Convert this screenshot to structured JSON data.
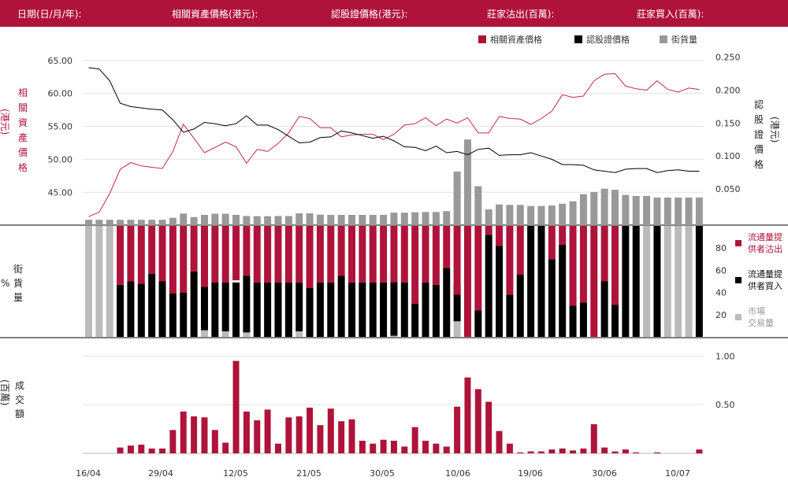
{
  "header": {
    "date_label": "日期(日/月/年):",
    "underlying_label": "相關資產價格(港元):",
    "warrant_label": "認股證價格(港元):",
    "mm_sell_label": "莊家沽出(百萬):",
    "mm_buy_label": "莊家買入(百萬):"
  },
  "legend": {
    "underlying": "相關資產價格",
    "warrant": "認股證價格",
    "outstanding": "街貨量"
  },
  "axes": {
    "left_top_label": [
      "相",
      "關",
      "資",
      "產",
      "價",
      "格"
    ],
    "left_top_unit": "(港元)",
    "right_top_label": [
      "認",
      "股",
      "證",
      "價",
      "格"
    ],
    "right_top_unit": "(港元)",
    "mid_left_label": [
      "街",
      "貨",
      "量"
    ],
    "mid_left_unit": "%",
    "bottom_left_label": [
      "成",
      "交",
      "額"
    ],
    "bottom_left_unit": "(百萬)"
  },
  "mid_legend": {
    "sell_line1": "流通量提",
    "sell_line2": "供者沽出",
    "buy_line1": "流通量提",
    "buy_line2": "供者買入",
    "market_line1": "市場",
    "market_line2": "交易量"
  },
  "colors": {
    "brand": "#b0133a",
    "underlying": "#b0133a",
    "warrant": "#000000",
    "outstanding": "#999999",
    "market": "#bbbbbb"
  },
  "chart_data": {
    "type": "line",
    "x_ticks": [
      "16/04",
      "29/04",
      "12/05",
      "21/05",
      "30/05",
      "10/06",
      "19/06",
      "30/06",
      "10/07"
    ],
    "underlying_price": {
      "name": "相關資產價格",
      "ylim": [
        40.5,
        67
      ],
      "ticks": [
        "65.00",
        "60.00",
        "55.00",
        "50.00",
        "45.00"
      ],
      "tick_values": [
        65,
        60,
        55,
        50,
        45
      ],
      "values": [
        41.3,
        42,
        44.8,
        48.5,
        49.5,
        49,
        48.8,
        48.6,
        51.2,
        55.3,
        53.2,
        51,
        51.8,
        52.6,
        51.9,
        49.4,
        51.5,
        51.2,
        52.4,
        54,
        56.5,
        56.2,
        54.8,
        54.8,
        53.4,
        53.7,
        53.8,
        53.8,
        53,
        53.8,
        55.2,
        55.4,
        56.3,
        55.1,
        56.1,
        55.5,
        56.3,
        54,
        54,
        56.5,
        56.2,
        56.1,
        55.3,
        56.2,
        57.3,
        59.8,
        59.4,
        59.6,
        61.9,
        62.9,
        63,
        61.1,
        60.7,
        60.5,
        61.9,
        60.6,
        60.2,
        60.8,
        60.6
      ]
    },
    "warrant_price": {
      "name": "認股證價格",
      "ylim": [
        0,
        0.265
      ],
      "ticks": [
        "0.250",
        "0.200",
        "0.150",
        "0.100",
        "0.050"
      ],
      "tick_values": [
        0.25,
        0.2,
        0.15,
        0.1,
        0.05
      ],
      "values": [
        0.234,
        0.232,
        0.214,
        0.18,
        0.175,
        0.173,
        0.171,
        0.17,
        0.155,
        0.136,
        0.141,
        0.151,
        0.149,
        0.146,
        0.149,
        0.161,
        0.147,
        0.147,
        0.14,
        0.13,
        0.12,
        0.121,
        0.128,
        0.129,
        0.138,
        0.135,
        0.131,
        0.127,
        0.13,
        0.123,
        0.114,
        0.113,
        0.108,
        0.115,
        0.105,
        0.107,
        0.102,
        0.11,
        0.112,
        0.101,
        0.102,
        0.102,
        0.105,
        0.1,
        0.095,
        0.087,
        0.087,
        0.086,
        0.079,
        0.077,
        0.075,
        0.08,
        0.081,
        0.081,
        0.075,
        0.078,
        0.079,
        0.077,
        0.077
      ]
    },
    "outstanding": {
      "name": "街貨量",
      "ylim": [
        0,
        80
      ],
      "values": [
        2.4,
        2.4,
        2.4,
        2.4,
        2.4,
        2.4,
        2.4,
        2.4,
        3.3,
        5.2,
        3.6,
        4.6,
        5.1,
        5.1,
        4.6,
        4.1,
        4.0,
        4.0,
        4.1,
        4.1,
        5.3,
        5.3,
        4.7,
        4.6,
        4.6,
        4.6,
        4.6,
        4.6,
        4.6,
        5.6,
        5.6,
        5.8,
        5.9,
        5.9,
        6.3,
        24.1,
        38.5,
        17.5,
        7.1,
        9.3,
        9.1,
        9.1,
        8.6,
        8.6,
        8.8,
        9.6,
        10.7,
        13.9,
        14.9,
        16.4,
        15.9,
        13.6,
        13.1,
        13.1,
        12.4,
        12.4,
        12.4,
        12.4,
        12.4
      ]
    },
    "liquidity": {
      "ylim": [
        0,
        100
      ],
      "ticks": [
        "80",
        "60",
        "40",
        "20"
      ],
      "tick_values": [
        80,
        60,
        40,
        20
      ],
      "series": [
        {
          "name": "流通量提供者沽出",
          "values": [
            0,
            0,
            0,
            53,
            50,
            52,
            43,
            50,
            61,
            60,
            41,
            55,
            51,
            51,
            49,
            45,
            51,
            51,
            51,
            51,
            51,
            56,
            51,
            51,
            45,
            51,
            51,
            51,
            51,
            51,
            51,
            70,
            51,
            53,
            38,
            62,
            100,
            76,
            8,
            18,
            62,
            44,
            0,
            0,
            30,
            17,
            72,
            69,
            100,
            50,
            71,
            0,
            0,
            0,
            0,
            0,
            0,
            0,
            0
          ]
        },
        {
          "name": "流通量提供者買入",
          "values": [
            0,
            0,
            0,
            47,
            50,
            48,
            57,
            50,
            39,
            40,
            59,
            39,
            49,
            44,
            49,
            51,
            49,
            49,
            49,
            49,
            44,
            44,
            49,
            49,
            55,
            49,
            49,
            49,
            49,
            49,
            49,
            30,
            49,
            47,
            62,
            33,
            0,
            24,
            92,
            82,
            38,
            56,
            100,
            100,
            70,
            83,
            28,
            31,
            0,
            50,
            29,
            100,
            100,
            0,
            100,
            0,
            0,
            0,
            100
          ]
        },
        {
          "name": "市場交易量",
          "values": [
            100,
            100,
            100,
            0,
            0,
            0,
            0,
            0,
            0,
            0,
            0,
            6,
            0,
            5,
            0,
            4,
            0,
            0,
            0,
            0,
            5,
            0,
            0,
            0,
            0,
            0,
            0,
            0,
            0,
            1,
            0,
            0,
            0,
            0,
            0,
            14,
            0,
            0,
            0,
            0,
            0,
            0,
            0,
            0,
            0,
            0,
            0,
            0,
            0,
            0,
            0,
            0,
            0,
            100,
            0,
            100,
            100,
            100,
            0
          ]
        }
      ]
    },
    "turnover": {
      "name": "成交額",
      "ylim": [
        0,
        1.0
      ],
      "ticks": [
        "1.00",
        "0.50"
      ],
      "tick_values": [
        1.0,
        0.5
      ],
      "values": [
        0,
        0,
        0,
        0.06,
        0.08,
        0.09,
        0.05,
        0.05,
        0.24,
        0.43,
        0.38,
        0.37,
        0.24,
        0.11,
        0.95,
        0.43,
        0.34,
        0.45,
        0.1,
        0.37,
        0.38,
        0.47,
        0.29,
        0.46,
        0.33,
        0.35,
        0.13,
        0.1,
        0.14,
        0.13,
        0.07,
        0.27,
        0.13,
        0.1,
        0.07,
        0.48,
        0.78,
        0.66,
        0.53,
        0.23,
        0.1,
        0.01,
        0.02,
        0.02,
        0.04,
        0.05,
        0.03,
        0.05,
        0.3,
        0.06,
        0.02,
        0.04,
        0.01,
        0,
        0.01,
        0,
        0,
        0,
        0.04
      ]
    }
  }
}
